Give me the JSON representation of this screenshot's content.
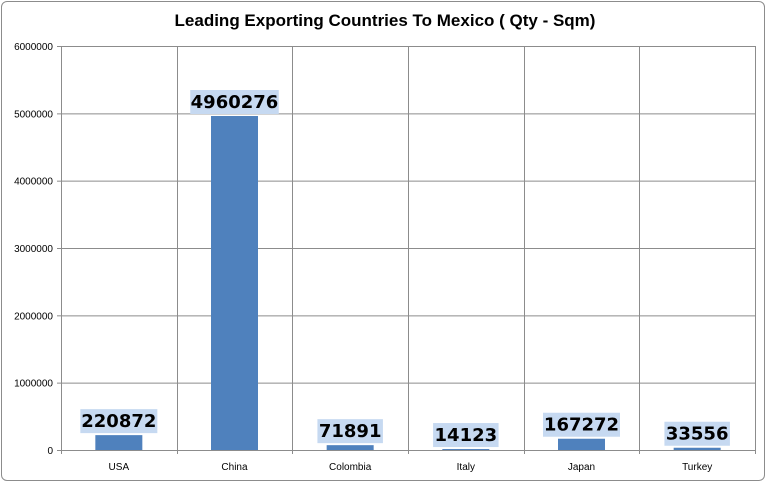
{
  "chart_data": {
    "type": "bar",
    "title": "Leading Exporting Countries To Mexico ( Qty - Sqm)",
    "xlabel": "",
    "ylabel": "",
    "categories": [
      "USA",
      "China",
      "Colombia",
      "Italy",
      "Japan",
      "Turkey"
    ],
    "values": [
      220872,
      4960276,
      71891,
      14123,
      167272,
      33556
    ],
    "ylim": [
      0,
      6000000
    ],
    "yticks": [
      0,
      1000000,
      2000000,
      3000000,
      4000000,
      5000000,
      6000000
    ],
    "ytick_labels": [
      "0",
      "1000000",
      "2000000",
      "3000000",
      "4000000",
      "5000000",
      "6000000"
    ],
    "data_labels": [
      "220872",
      "4960276",
      "71891",
      "14123",
      "167272",
      "33556"
    ],
    "grid": true,
    "legend": "none",
    "colors": {
      "bar": "#4f81bd",
      "data_label_bg": "#c6d9f1",
      "grid": "#8c8c8c"
    }
  }
}
